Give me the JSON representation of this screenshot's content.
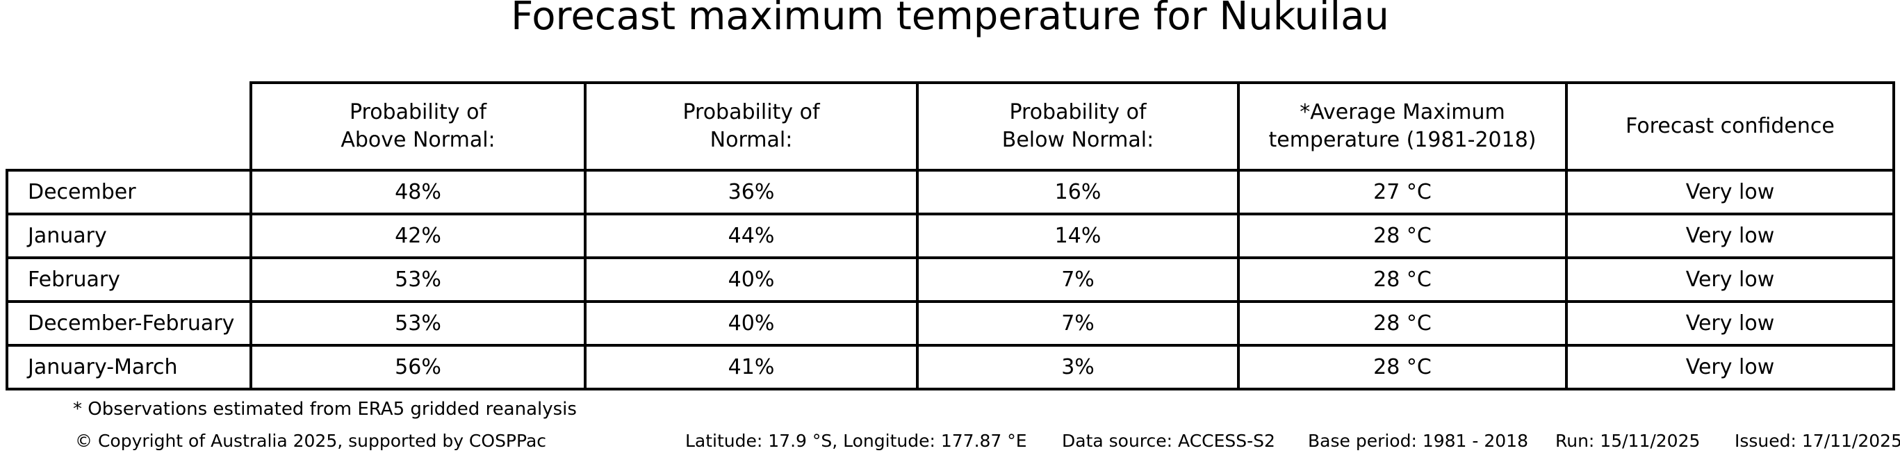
{
  "title": "Forecast maximum temperature for Nukuilau",
  "table": {
    "column_headers": {
      "above": "Probability of\nAbove Normal:",
      "normal": "Probability of\nNormal:",
      "below": "Probability of\nBelow Normal:",
      "avg_max": "*Average Maximum\ntemperature (1981-2018)",
      "confidence": "Forecast confidence"
    },
    "rows": [
      {
        "label": "December",
        "above": "48%",
        "normal": "36%",
        "below": "16%",
        "avg_max": "27 °C",
        "confidence": "Very low"
      },
      {
        "label": "January",
        "above": "42%",
        "normal": "44%",
        "below": "14%",
        "avg_max": "28 °C",
        "confidence": "Very low"
      },
      {
        "label": "February",
        "above": "53%",
        "normal": "40%",
        "below": "7%",
        "avg_max": "28 °C",
        "confidence": "Very low"
      },
      {
        "label": "December-February",
        "above": "53%",
        "normal": "40%",
        "below": "7%",
        "avg_max": "28 °C",
        "confidence": "Very low"
      },
      {
        "label": "January-March",
        "above": "56%",
        "normal": "41%",
        "below": "3%",
        "avg_max": "28 °C",
        "confidence": "Very low"
      }
    ]
  },
  "footnote": "* Observations estimated from ERA5 gridded reanalysis",
  "footer": {
    "copyright": "© Copyright of Australia 2025, supported by COSPPac",
    "location": "Latitude: 17.9 °S, Longitude: 177.87 °E",
    "data_source": "Data source: ACCESS-S2",
    "base_period": "Base period: 1981 - 2018",
    "run": "Run: 15/11/2025",
    "issued": "Issued: 17/11/2025"
  },
  "colors": {
    "background": "#ffffff",
    "text": "#000000",
    "border": "#000000"
  },
  "chart_data": {
    "type": "table",
    "title": "Forecast maximum temperature for Nukuilau",
    "row_labels": [
      "December",
      "January",
      "February",
      "December-February",
      "January-March"
    ],
    "columns": [
      "Probability of Above Normal (%)",
      "Probability of Normal (%)",
      "Probability of Below Normal (%)",
      "Average Maximum temperature 1981-2018 (°C)",
      "Forecast confidence"
    ],
    "rows": [
      [
        48,
        36,
        16,
        27,
        "Very low"
      ],
      [
        42,
        44,
        14,
        28,
        "Very low"
      ],
      [
        53,
        40,
        7,
        28,
        "Very low"
      ],
      [
        53,
        40,
        7,
        28,
        "Very low"
      ],
      [
        56,
        41,
        3,
        28,
        "Very low"
      ]
    ],
    "footnote": "* Observations estimated from ERA5 gridded reanalysis",
    "location": {
      "latitude": "17.9 °S",
      "longitude": "177.87 °E"
    },
    "data_source": "ACCESS-S2",
    "base_period": "1981 - 2018",
    "run_date": "15/11/2025",
    "issued_date": "17/11/2025"
  }
}
